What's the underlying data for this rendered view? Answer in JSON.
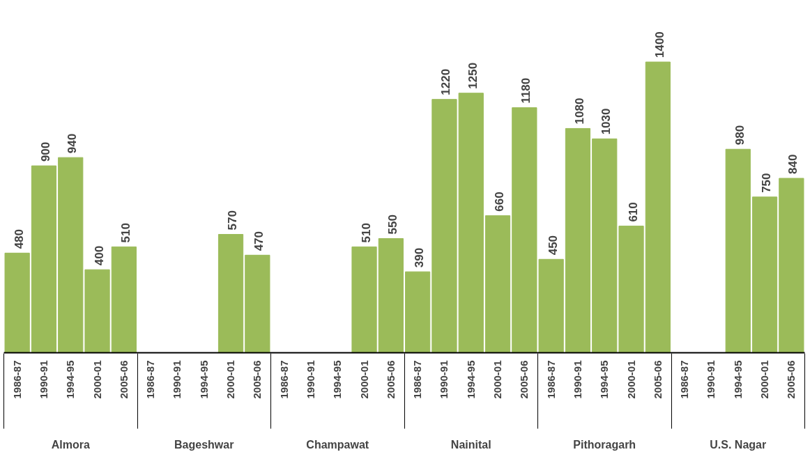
{
  "chart_data": {
    "type": "bar",
    "categories": [
      "1986-87",
      "1990-91",
      "1994-95",
      "2000-01",
      "2005-06",
      "1986-87",
      "1990-91",
      "1994-95",
      "2000-01",
      "2005-06",
      "1986-87",
      "1990-91",
      "1994-95",
      "2000-01",
      "2005-06",
      "1986-87",
      "1990-91",
      "1994-95",
      "2000-01",
      "2005-06",
      "1986-87",
      "1990-91",
      "1994-95",
      "2000-01",
      "2005-06",
      "1986-87",
      "1990-91",
      "1994-95",
      "2000-01",
      "2005-06"
    ],
    "annotations": [
      "Almora",
      "Bageshwar",
      "Champawat",
      "Nainital",
      "Pithoragarh",
      "U.S. Nagar"
    ],
    "values": [
      480,
      900,
      940,
      400,
      510,
      null,
      null,
      null,
      570,
      470,
      null,
      null,
      null,
      510,
      550,
      390,
      1220,
      1250,
      660,
      1180,
      450,
      1080,
      1030,
      610,
      1400,
      null,
      null,
      980,
      750,
      840
    ],
    "color": "#9bbb59",
    "data_labels": true
  }
}
